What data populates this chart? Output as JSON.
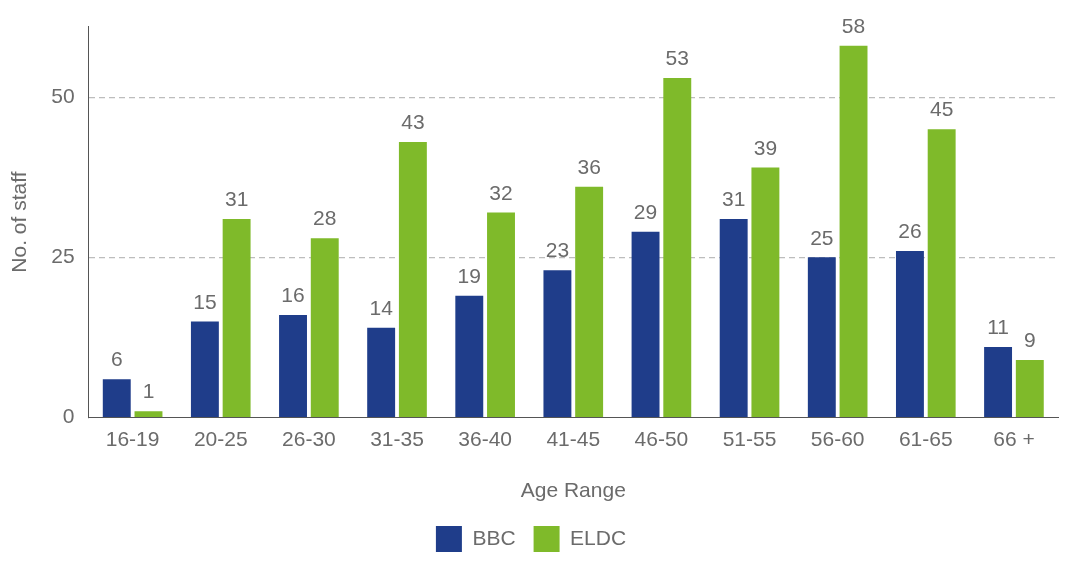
{
  "chart_data": {
    "type": "bar",
    "xlabel": "Age Range",
    "ylabel": "No. of staff",
    "categories": [
      "16-19",
      "20-25",
      "26-30",
      "31-35",
      "36-40",
      "41-45",
      "46-50",
      "51-55",
      "56-60",
      "61-65",
      "66 +"
    ],
    "series": [
      {
        "name": "BBC",
        "color": "#1f3d8a",
        "values": [
          6,
          15,
          16,
          14,
          19,
          23,
          29,
          31,
          25,
          26,
          11
        ]
      },
      {
        "name": "ELDC",
        "color": "#7fba2a",
        "values": [
          1,
          31,
          28,
          43,
          32,
          36,
          53,
          39,
          58,
          45,
          9
        ]
      }
    ],
    "ylim": [
      0,
      61
    ],
    "yticks": [
      0,
      25,
      50
    ],
    "grid": "y",
    "legend": "bottom",
    "data_labels": true
  }
}
